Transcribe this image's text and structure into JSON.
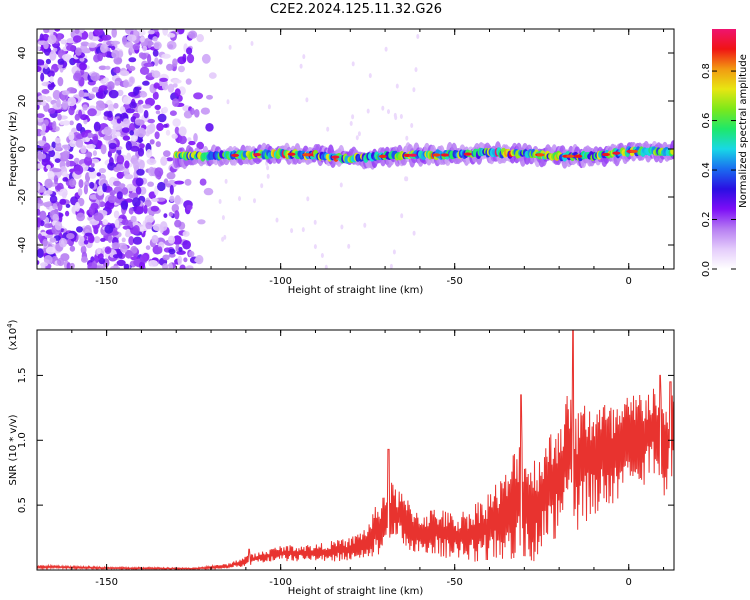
{
  "chart_data": [
    {
      "type": "heatmap",
      "title": "C2E2.2024.125.11.32.G26",
      "xlabel": "Height of straight line (km)",
      "ylabel": "Frequency (Hz)",
      "xlim": [
        -170,
        13
      ],
      "ylim": [
        -50,
        50
      ],
      "xticks": [
        -150,
        -100,
        -50,
        0
      ],
      "yticks": [
        -40,
        -20,
        0,
        20,
        40
      ],
      "colorbar": {
        "label": "Normalized spectral amplitude",
        "range": [
          0,
          0.97
        ],
        "ticks": [
          "0.0",
          "0.2",
          "0.4",
          "0.6",
          "0.8"
        ],
        "colors": [
          "#ffffff",
          "#e4ccfb",
          "#b77ef2",
          "#7d0ef6",
          "#2a0fe2",
          "#1a6cf0",
          "#18d8e6",
          "#1ee86a",
          "#7de81a",
          "#e8e612",
          "#f29a12",
          "#f01414",
          "#ef1470"
        ]
      },
      "noise_region_km": [
        -170,
        -118
      ],
      "signal_track": {
        "start_km": -130,
        "x": [
          -130,
          -120,
          -110,
          -100,
          -90,
          -80,
          -70,
          -60,
          -50,
          -40,
          -30,
          -20,
          -10,
          0,
          12
        ],
        "freq_hz": [
          -3,
          -3,
          -2.5,
          -2,
          -2.5,
          -4,
          -3,
          -2.5,
          -2.5,
          -1.5,
          -2,
          -3,
          -3,
          -1,
          -1
        ]
      }
    },
    {
      "type": "line",
      "xlabel": "Height of straight line (km)",
      "ylabel": "SNR (10 * v/v)",
      "yscale_label": "(x10",
      "yscale_exp": "4",
      "yscale_close": ")",
      "xlim": [
        -170,
        13
      ],
      "ylim": [
        0,
        18500
      ],
      "xticks": [
        -150,
        -100,
        -50,
        0
      ],
      "yticks": [
        5000,
        10000,
        15000
      ],
      "ytick_labels": [
        "0.5",
        "1.0",
        "1.5"
      ],
      "line_color": "#e8332f",
      "envelope": {
        "x": [
          -170,
          -150,
          -125,
          -115,
          -110,
          -100,
          -90,
          -80,
          -75,
          -71,
          -68,
          -60,
          -55,
          -50,
          -45,
          -40,
          -35,
          -31,
          -28,
          -22,
          -17,
          -15,
          -12,
          -7,
          -5,
          0,
          5,
          8,
          10,
          12
        ],
        "mean": [
          250,
          150,
          100,
          300,
          700,
          1300,
          1300,
          1600,
          2200,
          3500,
          4500,
          2800,
          3000,
          2500,
          2800,
          3500,
          4200,
          6000,
          4500,
          6500,
          9000,
          7500,
          8500,
          9000,
          8500,
          9500,
          10500,
          11000,
          9000,
          10500
        ],
        "spread": [
          120,
          80,
          60,
          200,
          400,
          600,
          700,
          900,
          1300,
          2500,
          2300,
          1700,
          1900,
          1800,
          2200,
          2800,
          3500,
          5000,
          4000,
          4500,
          5000,
          4800,
          5000,
          4200,
          4200,
          4000,
          3800,
          3500,
          3600,
          3300
        ]
      },
      "peaks": [
        {
          "x": -109,
          "y": 1600
        },
        {
          "x": -69,
          "y": 9300
        },
        {
          "x": -31,
          "y": 13500
        },
        {
          "x": -16,
          "y": 18500
        },
        {
          "x": 9,
          "y": 15000
        },
        {
          "x": 12,
          "y": 14500
        }
      ]
    }
  ]
}
